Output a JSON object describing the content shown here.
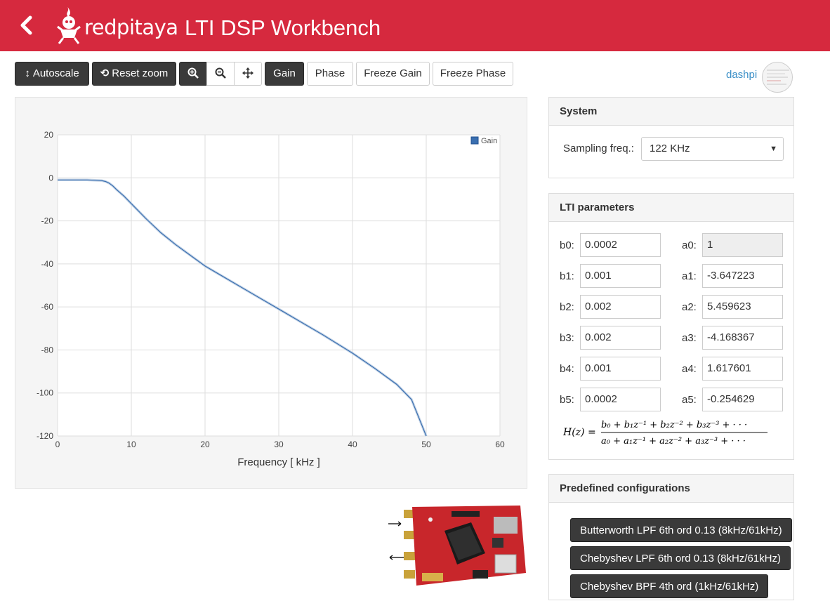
{
  "header": {
    "brand": "redpitaya",
    "title": "LTI DSP Workbench",
    "color": "#d6293e"
  },
  "toolbar": {
    "autoscale": "Autoscale",
    "reset_zoom": "Reset zoom",
    "gain": "Gain",
    "phase": "Phase",
    "freeze_gain": "Freeze Gain",
    "freeze_phase": "Freeze Phase",
    "icons": [
      "vertical-arrows-icon",
      "refresh-icon",
      "zoom-in-icon",
      "zoom-out-icon",
      "move-icon"
    ]
  },
  "user": {
    "name": "dashpi"
  },
  "chart_data": {
    "type": "line",
    "title": "",
    "xlabel": "Frequency [ kHz ]",
    "ylabel": "",
    "xlim": [
      0,
      60
    ],
    "ylim": [
      -120,
      20
    ],
    "xticks": [
      0,
      10,
      20,
      30,
      40,
      50,
      60
    ],
    "yticks": [
      20,
      0,
      -20,
      -40,
      -60,
      -80,
      -100,
      -120
    ],
    "grid": true,
    "legend_position": "top-right",
    "series": [
      {
        "name": "Gain",
        "color": "#3a6fb0",
        "x": [
          0,
          2,
          4,
          5,
          6,
          6.5,
          7,
          7.5,
          8,
          9,
          10,
          12,
          14,
          16,
          18,
          20,
          22,
          25,
          28,
          30,
          33,
          36,
          40,
          43,
          46,
          48,
          50
        ],
        "y": [
          -1,
          -1,
          -1,
          -1.1,
          -1.3,
          -1.7,
          -2.5,
          -3.8,
          -5.5,
          -8.5,
          -12,
          -19,
          -25.5,
          -31,
          -36,
          -41,
          -45,
          -51,
          -57,
          -61,
          -67,
          -73,
          -81.5,
          -88.5,
          -96,
          -103,
          -120
        ]
      }
    ]
  },
  "system": {
    "title": "System",
    "sampling_label": "Sampling freq.:",
    "sampling_value": "122 KHz"
  },
  "lti": {
    "title": "LTI parameters",
    "b_labels": [
      "b0:",
      "b1:",
      "b2:",
      "b3:",
      "b4:",
      "b5:"
    ],
    "b_values": [
      "0.0002",
      "0.001",
      "0.002",
      "0.002",
      "0.001",
      "0.0002"
    ],
    "a_labels": [
      "a0:",
      "a1:",
      "a2:",
      "a3:",
      "a4:",
      "a5:"
    ],
    "a_values": [
      "1",
      "-3.647223",
      "5.459623",
      "-4.168367",
      "1.617601",
      "-0.254629"
    ]
  },
  "predefined": {
    "title": "Predefined configurations",
    "items": [
      "Butterworth LPF 6th ord 0.13 (8kHz/61kHz)",
      "Chebyshev LPF 6th ord 0.13 (8kHz/61kHz)",
      "Chebyshev BPF 4th ord (1kHz/61kHz)"
    ]
  }
}
